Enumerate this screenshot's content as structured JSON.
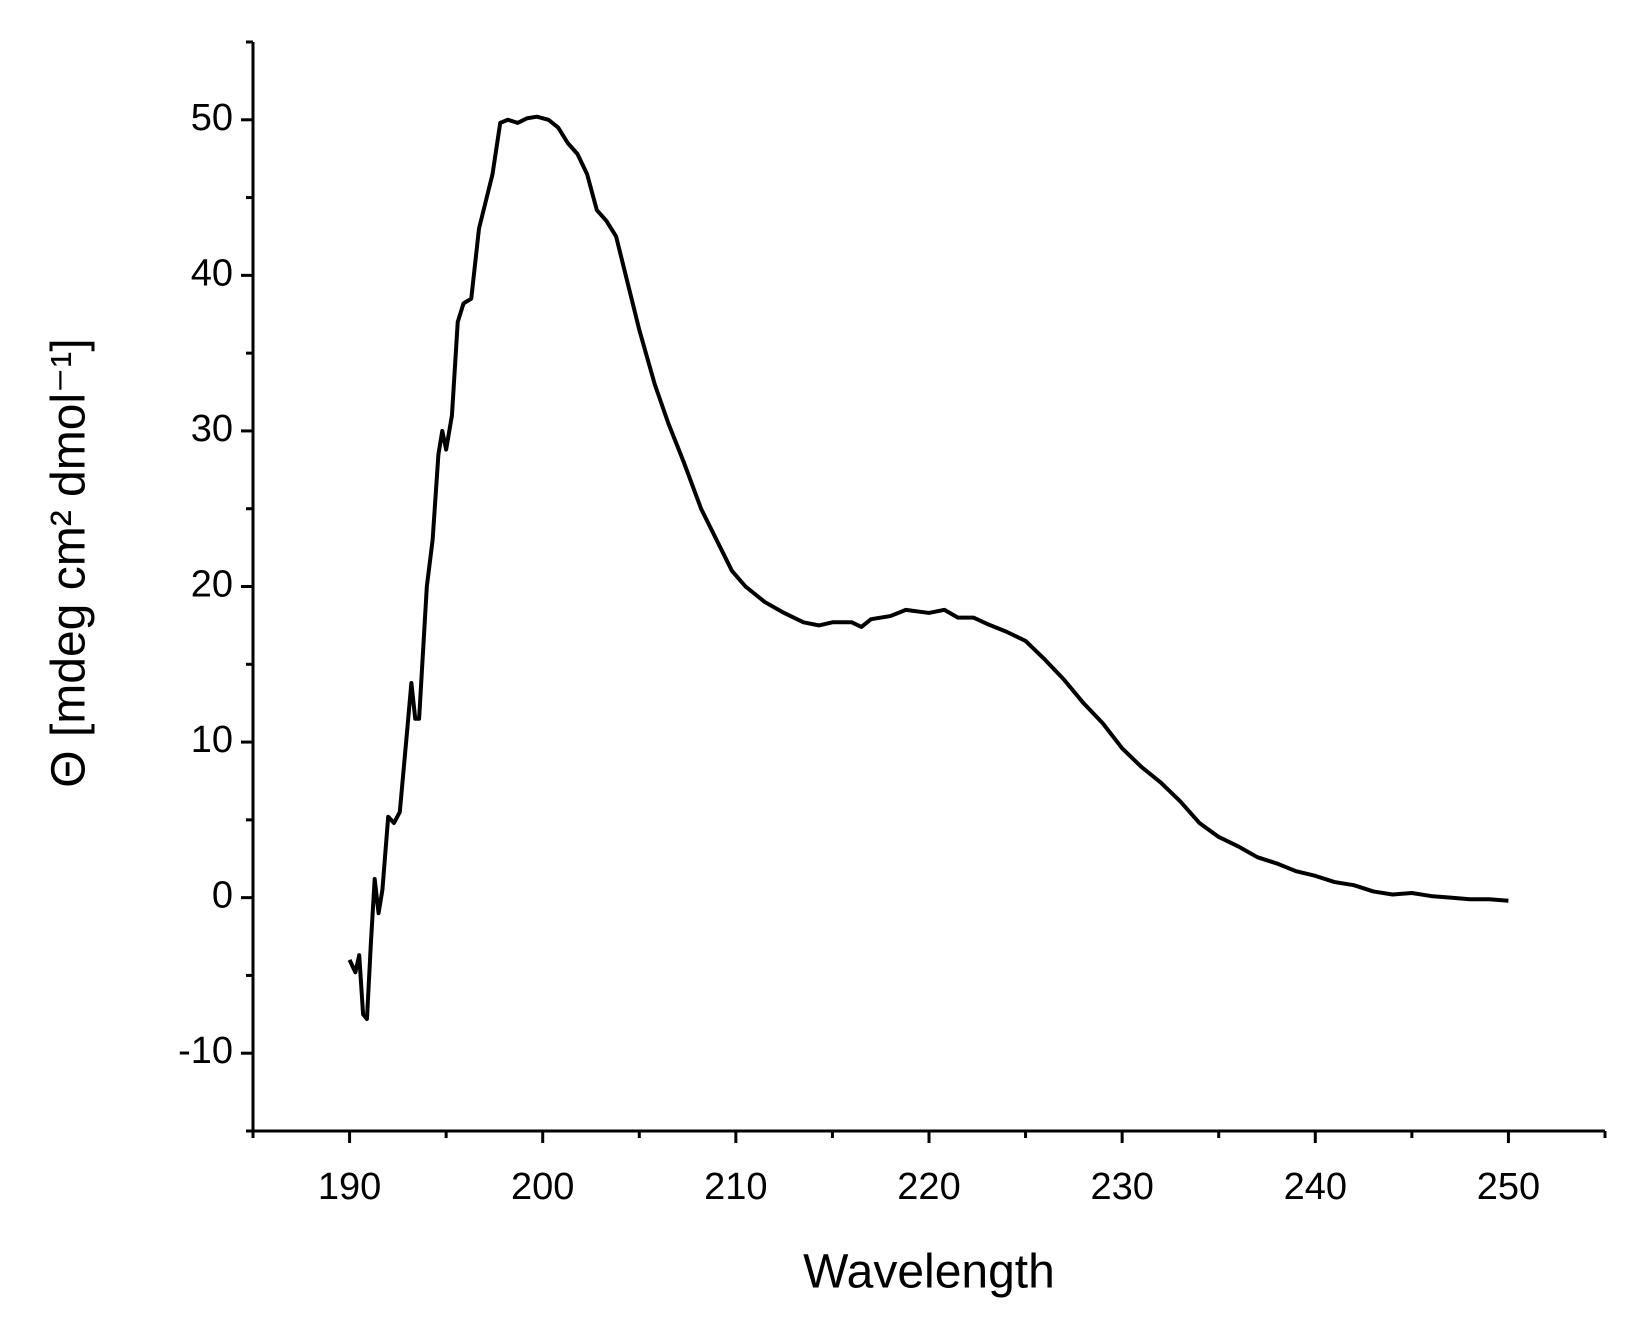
{
  "chart_data": {
    "type": "line",
    "x_label": "Wavelength",
    "y_label": "Θ [mdeg cm² dmol⁻¹]",
    "xlim": [
      185,
      255
    ],
    "ylim": [
      -15,
      55
    ],
    "xticks": [
      190,
      200,
      210,
      220,
      230,
      240,
      250
    ],
    "yticks": [
      -10,
      0,
      10,
      20,
      30,
      40,
      50
    ],
    "xminorticks": [
      185,
      195,
      205,
      215,
      225,
      235,
      245,
      255
    ],
    "yminorticks": [
      -15,
      -5,
      5,
      15,
      25,
      35,
      45,
      55
    ],
    "grid": false,
    "series": [
      {
        "color": "#000000",
        "x": [
          190,
          190.3,
          190.5,
          190.7,
          190.9,
          191.1,
          191.3,
          191.5,
          191.7,
          192,
          192.3,
          192.6,
          193,
          193.2,
          193.4,
          193.6,
          194,
          194.3,
          194.6,
          194.8,
          195,
          195.3,
          195.6,
          195.9,
          196.3,
          196.7,
          197.1,
          197.4,
          197.8,
          198.2,
          198.7,
          199.2,
          199.7,
          200.3,
          200.8,
          201.3,
          201.8,
          202.3,
          202.8,
          203.3,
          203.8,
          204.3,
          205,
          205.8,
          206.5,
          207.3,
          208.2,
          209,
          209.8,
          210.5,
          211.5,
          212.5,
          213.5,
          214.3,
          215,
          216,
          216.5,
          217,
          218,
          218.8,
          220,
          220.8,
          221.5,
          222.3,
          223,
          224,
          225,
          226,
          227,
          228,
          229,
          230,
          231,
          232,
          233,
          234,
          235,
          236,
          237,
          238,
          239,
          240,
          241,
          242,
          243,
          244,
          245,
          246,
          247,
          248,
          249,
          250
        ],
        "values": [
          -4,
          -4.8,
          -3.7,
          -7.5,
          -7.8,
          -3,
          1.2,
          -1,
          0.5,
          5.2,
          4.8,
          5.5,
          11,
          13.8,
          11.5,
          11.5,
          20,
          23,
          28.5,
          30,
          28.8,
          31,
          37,
          38.2,
          38.5,
          43,
          45,
          46.5,
          49.8,
          50,
          49.8,
          50.1,
          50.2,
          50,
          49.5,
          48.5,
          47.8,
          46.5,
          44.2,
          43.5,
          42.5,
          40,
          36.5,
          33,
          30.5,
          28,
          25,
          23,
          21,
          20,
          19,
          18.3,
          17.7,
          17.5,
          17.7,
          17.7,
          17.4,
          17.9,
          18.1,
          18.5,
          18.3,
          18.5,
          18,
          18,
          17.6,
          17.1,
          16.5,
          15.3,
          14,
          12.5,
          11.2,
          9.6,
          8.4,
          7.4,
          6.2,
          4.8,
          3.9,
          3.3,
          2.6,
          2.2,
          1.7,
          1.4,
          1,
          0.8,
          0.4,
          0.2,
          0.3,
          0.1,
          0,
          -0.1,
          -0.1,
          -0.2
        ]
      }
    ]
  }
}
